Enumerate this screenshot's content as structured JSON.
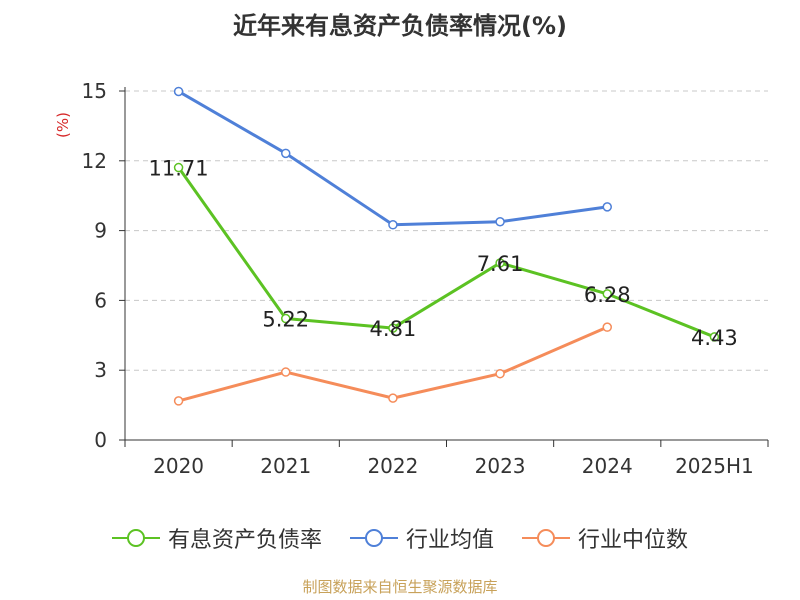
{
  "title": "近年来有息资产负债率情况(%)",
  "source": "制图数据来自恒生聚源数据库",
  "chart_data": {
    "type": "line",
    "categories": [
      "2020",
      "2021",
      "2022",
      "2023",
      "2024",
      "2025H1"
    ],
    "ylabel": "(%)",
    "ylim": [
      0,
      15
    ],
    "yticks": [
      0,
      3,
      6,
      9,
      12,
      15
    ],
    "grid": true,
    "legend_position": "bottom",
    "series": [
      {
        "name": "有息资产负债率",
        "color": "#5cc223",
        "values": [
          11.71,
          5.22,
          4.81,
          7.61,
          6.28,
          4.43
        ],
        "labels": [
          "11.71",
          "5.22",
          "4.81",
          "7.61",
          "6.28",
          "4.43"
        ]
      },
      {
        "name": "行业均值",
        "color": "#4f80d8",
        "values": [
          14.98,
          12.32,
          9.25,
          9.38,
          10.02,
          null
        ]
      },
      {
        "name": "行业中位数",
        "color": "#f58c5a",
        "values": [
          1.68,
          2.92,
          1.8,
          2.85,
          4.85,
          null
        ]
      }
    ]
  }
}
